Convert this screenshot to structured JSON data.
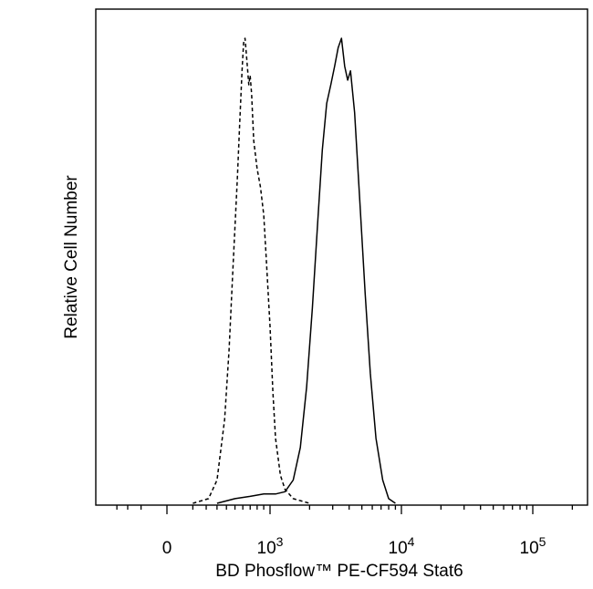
{
  "chart_data": {
    "type": "line",
    "xlabel": "BD Phosflow™ PE-CF594 Stat6",
    "ylabel": "Relative Cell Number",
    "x_scale": "biexponential",
    "x_ticks": [
      {
        "value": 0,
        "base": "0",
        "exp": ""
      },
      {
        "value": 1000,
        "base": "10",
        "exp": "3"
      },
      {
        "value": 10000,
        "base": "10",
        "exp": "4"
      },
      {
        "value": 100000,
        "base": "10",
        "exp": "5"
      }
    ],
    "y_range": [
      0,
      1
    ],
    "grid": false,
    "legend": "none",
    "series": [
      {
        "style": "dashed",
        "color": "#000000",
        "points": [
          [
            100,
            0
          ],
          [
            220,
            0.01
          ],
          [
            300,
            0.05
          ],
          [
            380,
            0.18
          ],
          [
            430,
            0.33
          ],
          [
            480,
            0.52
          ],
          [
            530,
            0.7
          ],
          [
            560,
            0.82
          ],
          [
            590,
            0.93
          ],
          [
            610,
            0.99
          ],
          [
            630,
            1.0
          ],
          [
            650,
            0.96
          ],
          [
            680,
            0.9
          ],
          [
            700,
            0.92
          ],
          [
            720,
            0.88
          ],
          [
            750,
            0.78
          ],
          [
            800,
            0.72
          ],
          [
            850,
            0.68
          ],
          [
            900,
            0.62
          ],
          [
            950,
            0.5
          ],
          [
            1000,
            0.38
          ],
          [
            1050,
            0.24
          ],
          [
            1100,
            0.14
          ],
          [
            1200,
            0.06
          ],
          [
            1300,
            0.03
          ],
          [
            1500,
            0.01
          ],
          [
            2000,
            0
          ]
        ]
      },
      {
        "style": "solid",
        "color": "#000000",
        "points": [
          [
            300,
            0
          ],
          [
            500,
            0.01
          ],
          [
            700,
            0.015
          ],
          [
            900,
            0.02
          ],
          [
            1100,
            0.02
          ],
          [
            1300,
            0.025
          ],
          [
            1500,
            0.05
          ],
          [
            1700,
            0.12
          ],
          [
            1900,
            0.25
          ],
          [
            2100,
            0.42
          ],
          [
            2300,
            0.6
          ],
          [
            2500,
            0.76
          ],
          [
            2700,
            0.86
          ],
          [
            2900,
            0.9
          ],
          [
            3100,
            0.94
          ],
          [
            3300,
            0.98
          ],
          [
            3500,
            1.0
          ],
          [
            3700,
            0.94
          ],
          [
            3900,
            0.91
          ],
          [
            4100,
            0.93
          ],
          [
            4400,
            0.84
          ],
          [
            4800,
            0.66
          ],
          [
            5300,
            0.45
          ],
          [
            5800,
            0.28
          ],
          [
            6400,
            0.14
          ],
          [
            7200,
            0.05
          ],
          [
            8000,
            0.01
          ],
          [
            9000,
            0
          ]
        ]
      }
    ]
  }
}
